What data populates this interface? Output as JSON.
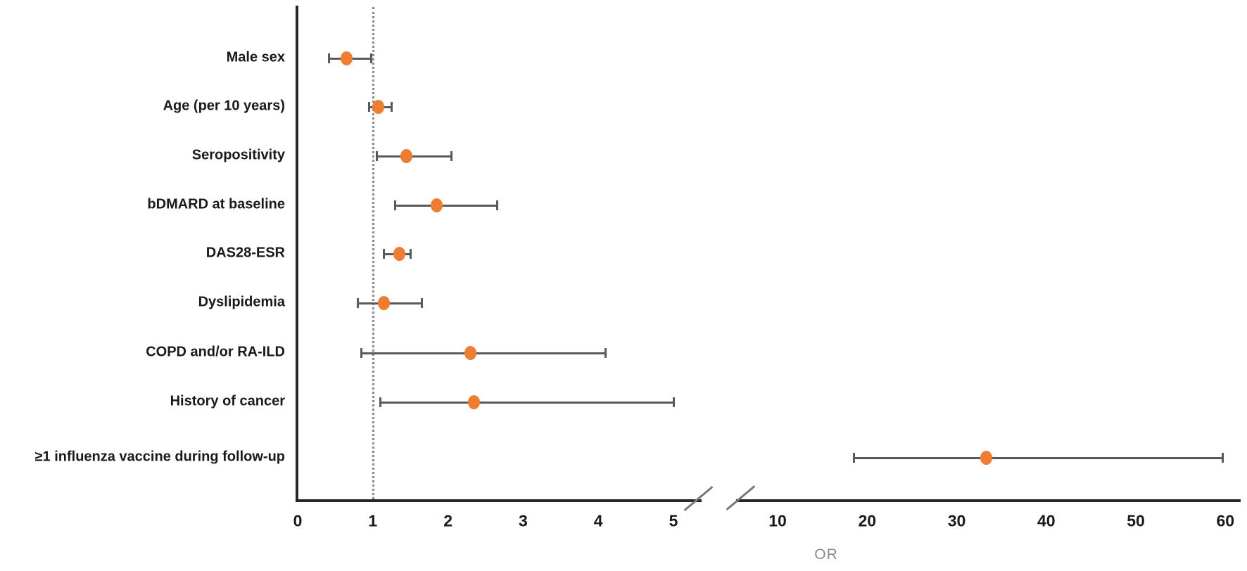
{
  "chart_data": {
    "type": "scatter",
    "subtype": "forest-plot",
    "title": "",
    "xlabel": "OR",
    "ylabel": "",
    "reference_line_x": 1,
    "axis_break": true,
    "segment1_range": [
      0,
      5.4
    ],
    "segment2_range": [
      6.5,
      60
    ],
    "xticks_segment1": [
      "0",
      "1",
      "2",
      "3",
      "4",
      "5"
    ],
    "xticks_segment1_values": [
      0,
      1,
      2,
      3,
      4,
      5
    ],
    "xticks_segment2": [
      "10",
      "20",
      "30",
      "40",
      "50",
      "60"
    ],
    "xticks_segment2_values": [
      10,
      20,
      30,
      40,
      50,
      60
    ],
    "grid": false,
    "legend": false,
    "rows": [
      {
        "label": "Male sex",
        "or": 0.65,
        "ci_low": 0.42,
        "ci_high": 0.98
      },
      {
        "label": "Age (per 10 years)",
        "or": 1.07,
        "ci_low": 0.95,
        "ci_high": 1.25
      },
      {
        "label": "Seropositivity",
        "or": 1.45,
        "ci_low": 1.05,
        "ci_high": 2.05
      },
      {
        "label": "bDMARD at baseline",
        "or": 1.85,
        "ci_low": 1.3,
        "ci_high": 2.65
      },
      {
        "label": "DAS28-ESR",
        "or": 1.35,
        "ci_low": 1.15,
        "ci_high": 1.5
      },
      {
        "label": "Dyslipidemia",
        "or": 1.15,
        "ci_low": 0.8,
        "ci_high": 1.65
      },
      {
        "label": "COPD and/or RA-ILD",
        "or": 2.3,
        "ci_low": 0.85,
        "ci_high": 4.1
      },
      {
        "label": "History of cancer",
        "or": 2.35,
        "ci_low": 1.1,
        "ci_high": 5.0
      },
      {
        "label": "≥1 influenza vaccine during follow-up",
        "or": 33.3,
        "ci_low": 18.5,
        "ci_high": 59.7
      }
    ],
    "colors": {
      "point": "#ED7D31",
      "whisker": "#5a5a5a",
      "axis": "#262626",
      "reference_line": "#8a8a8a",
      "tick_text": "#1a1a1a",
      "xlabel_text": "#8c8c8c"
    }
  }
}
